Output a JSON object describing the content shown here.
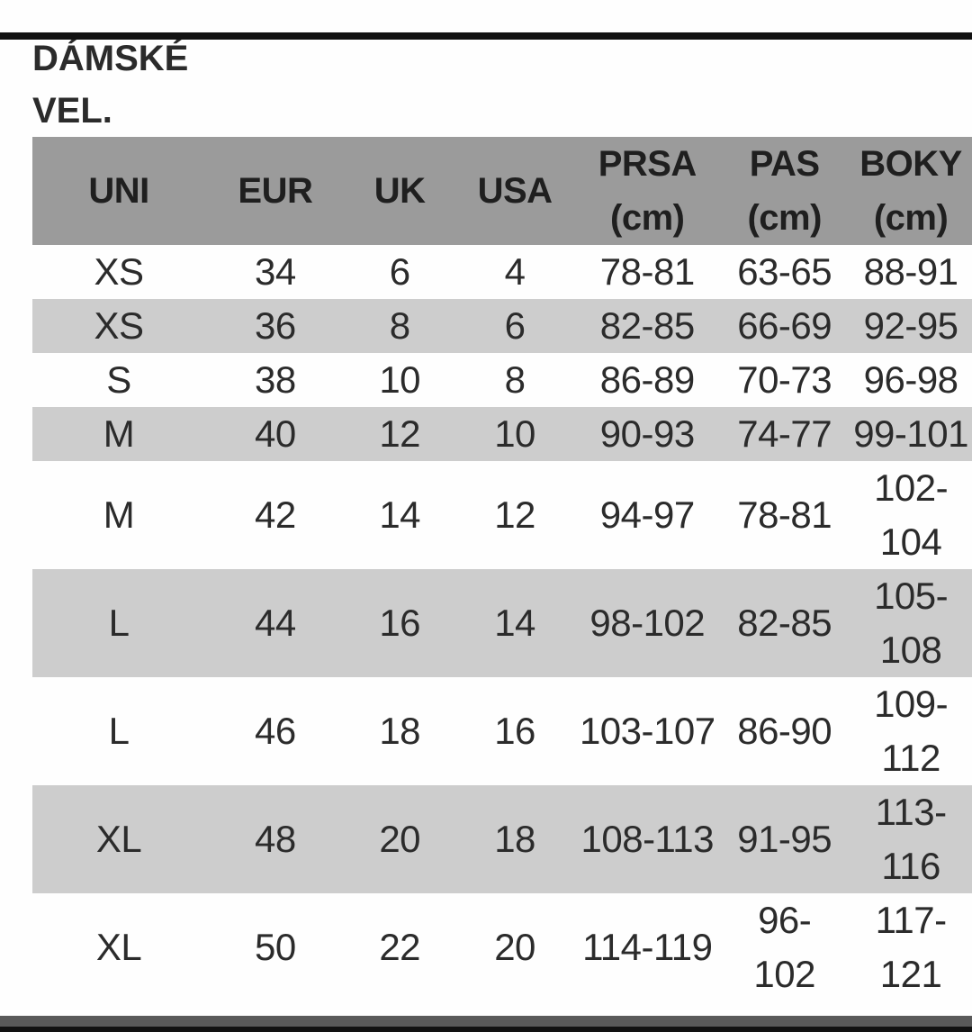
{
  "title": [
    "DÁMSKÉ",
    "VEL."
  ],
  "colors": {
    "header_bg": "#9b9b9b",
    "row_alt_bg": "#cdcdcd",
    "row_bg": "#fefefe",
    "text": "#2b2b2b",
    "top_bar": "#121212",
    "bottom_bar_gray": "#5a5a5a",
    "bottom_bar_black": "#121212"
  },
  "table": {
    "headers": [
      "UNI",
      "EUR",
      "UK",
      "USA",
      [
        "PRSA",
        "(cm)"
      ],
      [
        "PAS",
        "(cm)"
      ],
      [
        "BOKY",
        "(cm)"
      ]
    ],
    "rows": [
      {
        "cells": [
          "XS",
          "34",
          "6",
          "4",
          "78-81",
          "63-65",
          "88-91"
        ]
      },
      {
        "cells": [
          "XS",
          "36",
          "8",
          "6",
          "82-85",
          "66-69",
          "92-95"
        ]
      },
      {
        "cells": [
          "S",
          "38",
          "10",
          "8",
          "86-89",
          "70-73",
          "96-98"
        ]
      },
      {
        "cells": [
          "M",
          "40",
          "12",
          "10",
          "90-93",
          "74-77",
          "99-101"
        ]
      },
      {
        "cells": [
          "M",
          "42",
          "14",
          "12",
          "94-97",
          "78-81",
          [
            "102-",
            "104"
          ]
        ]
      },
      {
        "cells": [
          "L",
          "44",
          "16",
          "14",
          "98-102",
          "82-85",
          [
            "105-",
            "108"
          ]
        ]
      },
      {
        "cells": [
          "L",
          "46",
          "18",
          "16",
          "103-107",
          "86-90",
          [
            "109-",
            "112"
          ]
        ]
      },
      {
        "cells": [
          "XL",
          "48",
          "20",
          "18",
          "108-113",
          "91-95",
          [
            "113-",
            "116"
          ]
        ]
      },
      {
        "cells": [
          "XL",
          "50",
          "22",
          "20",
          "114-119",
          [
            "96-",
            "102"
          ],
          [
            "117-",
            "121"
          ]
        ]
      }
    ]
  }
}
